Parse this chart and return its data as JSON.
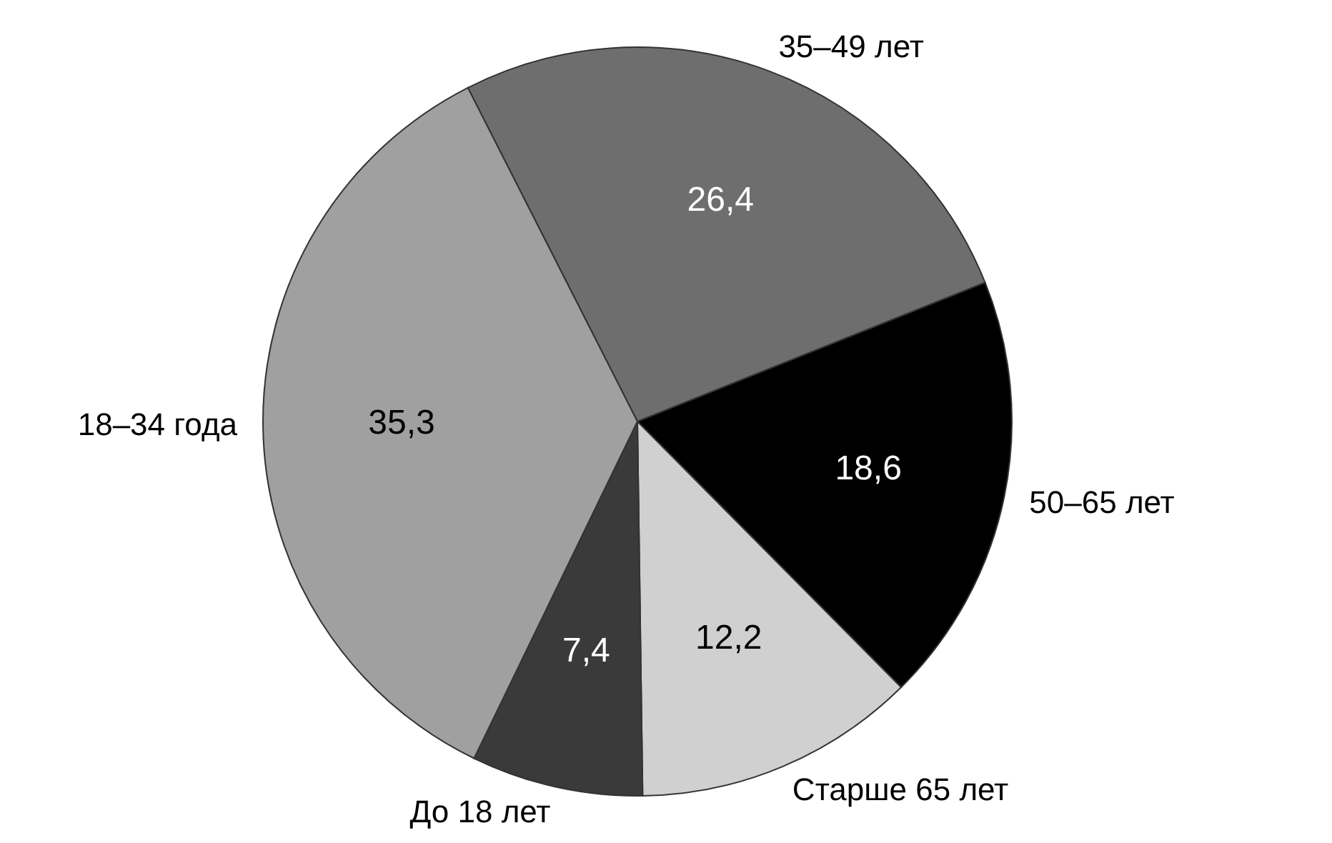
{
  "chart_data": {
    "type": "pie",
    "categories": [
      "35–49 лет",
      "50–65 лет",
      "Старше 65 лет",
      "До 18 лет",
      "18–34 года"
    ],
    "values": [
      26.4,
      18.6,
      12.2,
      7.4,
      35.3
    ],
    "colors": [
      "#6e6e6e",
      "#000000",
      "#d0d0d0",
      "#3a3a3a",
      "#a0a0a0"
    ],
    "value_labels": [
      "26,4",
      "18,6",
      "12,2",
      "7,4",
      "35,3"
    ]
  }
}
